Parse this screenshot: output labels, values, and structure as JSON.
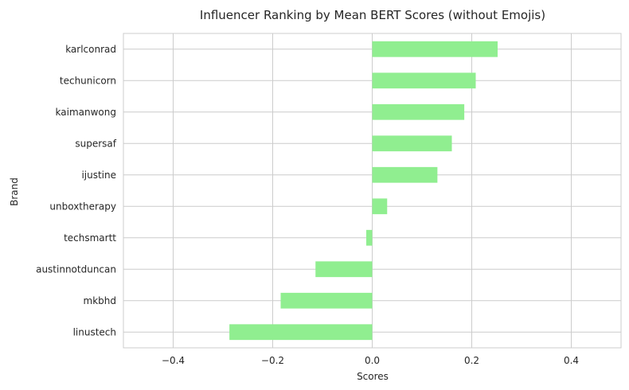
{
  "chart_data": {
    "type": "bar",
    "orientation": "horizontal",
    "title": "Influencer Ranking by Mean BERT Scores (without Emojis)",
    "xlabel": "Scores",
    "ylabel": "Brand",
    "xlim": [
      -0.5,
      0.5
    ],
    "xticks": [
      -0.4,
      -0.2,
      0.0,
      0.2,
      0.4
    ],
    "xtick_labels": [
      "−0.4",
      "−0.2",
      "0.0",
      "0.2",
      "0.4"
    ],
    "categories": [
      "karlconrad",
      "techunicorn",
      "kaimanwong",
      "supersaf",
      "ijustine",
      "unboxtherapy",
      "techsmartt",
      "austinnotduncan",
      "mkbhd",
      "linustech"
    ],
    "values": [
      0.252,
      0.208,
      0.185,
      0.16,
      0.131,
      0.03,
      -0.012,
      -0.114,
      -0.184,
      -0.287
    ],
    "bar_color": "#90ee90",
    "grid": true,
    "style": "whitegrid"
  }
}
